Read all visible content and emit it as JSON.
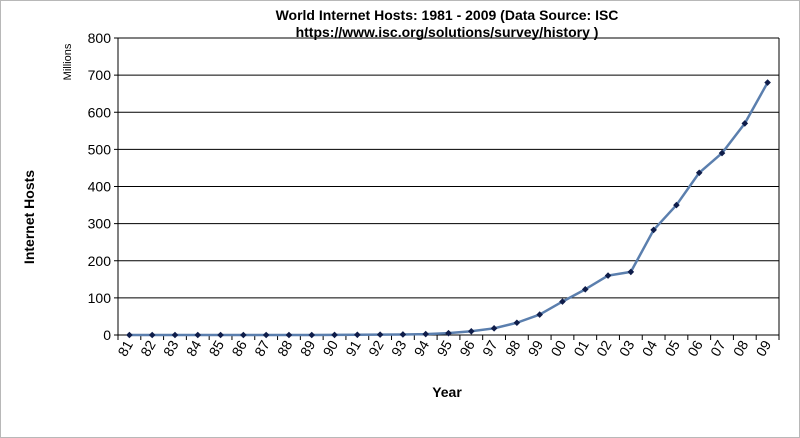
{
  "chart_data": {
    "type": "line",
    "title_lines": [
      "World Internet Hosts: 1981 - 2009 (Data Source: ISC",
      "https://www.isc.org/solutions/survey/history  )"
    ],
    "units_label": "Millions",
    "ylabel": "Internet Hosts",
    "xlabel": "Year",
    "ylim": [
      0,
      800
    ],
    "yticks": [
      "0",
      "100",
      "200",
      "300",
      "400",
      "500",
      "600",
      "700",
      "800"
    ],
    "grid": true,
    "categories": [
      "81",
      "82",
      "83",
      "84",
      "85",
      "86",
      "87",
      "88",
      "89",
      "90",
      "91",
      "92",
      "93",
      "94",
      "95",
      "96",
      "97",
      "98",
      "99",
      "00",
      "01",
      "02",
      "03",
      "04",
      "05",
      "06",
      "07",
      "08",
      "09"
    ],
    "series": [
      {
        "values": [
          0,
          0,
          0,
          0,
          0,
          0,
          0,
          0,
          0,
          0.3,
          0.6,
          1,
          1.5,
          2.5,
          5,
          10,
          18,
          33,
          55,
          90,
          123,
          160,
          170,
          283,
          350,
          437,
          490,
          570,
          680
        ],
        "line_color": "#5B7FAE",
        "marker_color": "#0F1D4A"
      }
    ]
  }
}
